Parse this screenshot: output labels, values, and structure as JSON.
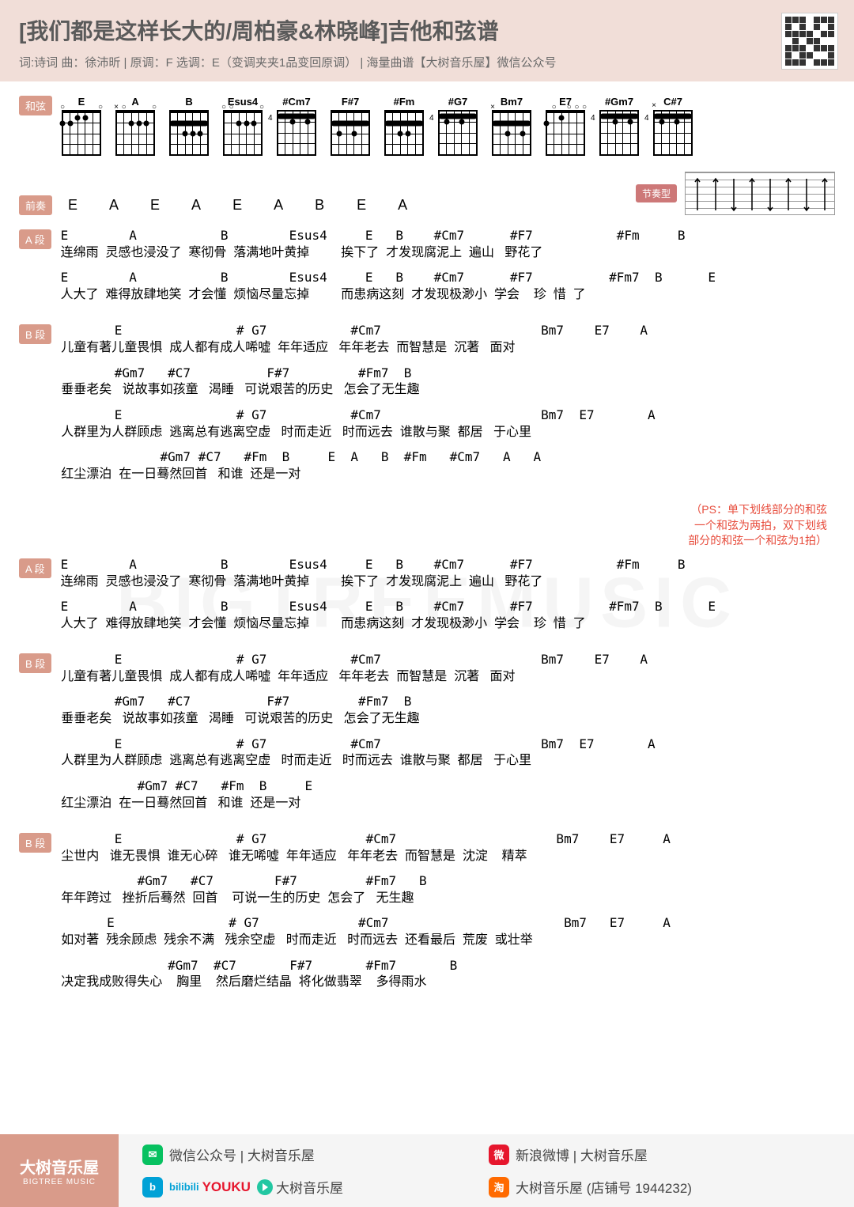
{
  "header": {
    "title": "[我们都是这样长大的/周柏豪&林晓峰]吉他和弦谱",
    "subtitle": "词:诗词   曲：徐沛昕   |   原调：F   选调：E（变调夹夹1品变回原调）   |   海量曲谱【大树音乐屋】微信公众号"
  },
  "tags": {
    "chord": "和弦",
    "intro": "前奏",
    "sectionA": "A 段",
    "sectionB": "B 段",
    "strum": "节奏型"
  },
  "chords": [
    {
      "name": "E"
    },
    {
      "name": "A"
    },
    {
      "name": "B"
    },
    {
      "name": "Esus4"
    },
    {
      "name": "#Cm7"
    },
    {
      "name": "F#7"
    },
    {
      "name": "#Fm"
    },
    {
      "name": "#G7"
    },
    {
      "name": "Bm7"
    },
    {
      "name": "E7"
    },
    {
      "name": "#Gm7"
    },
    {
      "name": "C#7"
    }
  ],
  "intro": "E  A  E  A  E  A  B  E  A",
  "sections": [
    {
      "tag": "A 段",
      "lines": [
        {
          "c": "E        A           B        Esus4     E   B    #Cm7      #F7           #Fm     B",
          "l": "连绵雨  灵感也浸没了  寒彻骨  落满地叶黄掉         挨下了  才发现腐泥上  遍山   野花了"
        },
        {
          "c": "E        A           B        Esus4     E   B    #Cm7      #F7          #Fm7  B      E",
          "l": "人大了  难得放肆地笑  才会懂  烦恼尽量忘掉         而患病这刻  才发现极渺小  学会    珍  惜  了"
        }
      ]
    },
    {
      "tag": "B 段",
      "lines": [
        {
          "c": "       E               # G7           #Cm7                     Bm7    E7    A",
          "l": "儿童有著儿童畏惧  成人都有成人唏噓  年年适应   年年老去  而智慧是  沉著   面对"
        },
        {
          "c": "       #Gm7   #C7          F#7         #Fm7  B",
          "l": "垂垂老矣   说故事如孩童   渴睡   可说艰苦的历史   怎会了无生趣"
        },
        {
          "c": "       E               # G7           #Cm7                     Bm7  E7       A",
          "l": "人群里为人群顾虑  逃离总有逃离空虚   时而走近   时而远去  谁散与聚  都居   于心里"
        },
        {
          "c": "             #Gm7 #C7   #Fm  B     E  A   B  #Fm   #Cm7   A   A",
          "l": "红尘漂泊  在一日蓦然回首   和谁  还是一对"
        }
      ]
    },
    {
      "tag": "A 段",
      "lines": [
        {
          "c": "E        A           B        Esus4     E   B    #Cm7      #F7           #Fm     B",
          "l": "连绵雨  灵感也浸没了  寒彻骨  落满地叶黄掉         挨下了  才发现腐泥上  遍山   野花了"
        },
        {
          "c": "E        A           B        Esus4     E   B    #Cm7      #F7          #Fm7  B      E",
          "l": "人大了  难得放肆地笑  才会懂  烦恼尽量忘掉         而患病这刻  才发现极渺小  学会    珍  惜  了"
        }
      ]
    },
    {
      "tag": "B 段",
      "lines": [
        {
          "c": "       E               # G7           #Cm7                     Bm7    E7    A",
          "l": "儿童有著儿童畏惧  成人都有成人唏噓  年年适应   年年老去  而智慧是  沉著   面对"
        },
        {
          "c": "       #Gm7   #C7          F#7         #Fm7  B",
          "l": "垂垂老矣   说故事如孩童   渴睡   可说艰苦的历史   怎会了无生趣"
        },
        {
          "c": "       E               # G7           #Cm7                     Bm7  E7       A",
          "l": "人群里为人群顾虑  逃离总有逃离空虚   时而走近   时而远去  谁散与聚  都居   于心里"
        },
        {
          "c": "          #Gm7 #C7   #Fm  B     E",
          "l": "红尘漂泊  在一日蓦然回首   和谁  还是一对"
        }
      ]
    },
    {
      "tag": "B 段",
      "lines": [
        {
          "c": "       E               # G7             #Cm7                     Bm7    E7     A",
          "l": "尘世内   谁无畏惧  谁无心碎   谁无唏噓  年年适应   年年老去  而智慧是  沈淀    精萃"
        },
        {
          "c": "          #Gm7   #C7        F#7         #Fm7   B",
          "l": "年年跨过   挫折后蓦然  回首    可说一生的历史  怎会了   无生趣"
        },
        {
          "c": "      E               # G7             #Cm7                       Bm7   E7     A",
          "l": "如对著  残余顾虑  残余不满   残余空虚   时而走近   时而远去  还看最后  荒废  或壮举"
        },
        {
          "c": "              #Gm7  #C7       F#7       #Fm7       B",
          "l": "决定我成败得失心    胸里    然后磨烂结晶  将化做翡翠    多得雨水"
        }
      ]
    }
  ],
  "ps_note": "（PS：单下划线部分的和弦\n一个和弦为两拍，双下划线\n部分的和弦一个和弦为1拍）",
  "footer": {
    "brand_cn": "大树音乐屋",
    "brand_en": "BIGTREE MUSIC",
    "links": {
      "wechat": "微信公众号 | 大树音乐屋",
      "weibo": "新浪微博 | 大树音乐屋",
      "bili_youku": "大树音乐屋",
      "taobao": "大树音乐屋  (店铺号 1944232)"
    }
  },
  "colors": {
    "header_bg": "#f1ded8",
    "tag_bg": "#d99b8a",
    "strum_tag_bg": "#cd7878",
    "ps_color": "#e74c3c"
  },
  "watermark": "BIGTREEMUSIC"
}
